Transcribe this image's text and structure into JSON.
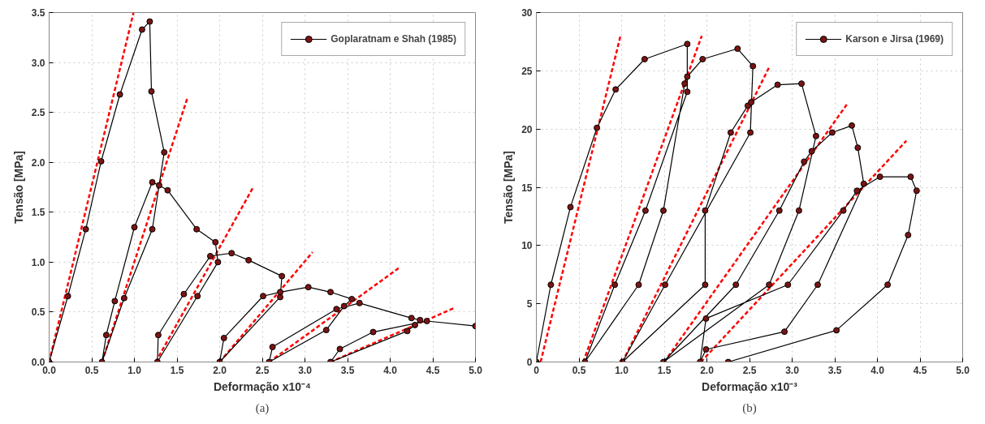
{
  "chart_data": [
    {
      "type": "line",
      "xlabel": "Deformação x10⁻⁴",
      "ylabel": "Tensão [MPa]",
      "annotations": [
        "(a)"
      ],
      "grid": true,
      "legend": "top right",
      "xlim": [
        0,
        5
      ],
      "ylim": [
        0,
        3.5
      ],
      "xticks": [
        {
          "value": 0,
          "label": "0.0"
        },
        0.5,
        {
          "value": 1,
          "label": "1.0"
        },
        1.5,
        {
          "value": 2,
          "label": "2.0"
        },
        2.5,
        {
          "value": 3,
          "label": "3.0"
        },
        3.5,
        {
          "value": 4,
          "label": "4.0"
        },
        4.5,
        {
          "value": 5,
          "label": "5.0"
        }
      ],
      "yticks": [
        {
          "value": 0,
          "label": "0.0"
        },
        0.5,
        {
          "value": 1,
          "label": "1.0"
        },
        1.5,
        {
          "value": 2,
          "label": "2.0"
        },
        2.5,
        {
          "value": 3,
          "label": "3.0"
        },
        3.5
      ],
      "series": [
        {
          "type": "line",
          "color": "#ff0000",
          "line_style": "dashed",
          "marker": "none",
          "x": [
            0.0,
            0.99
          ],
          "values": [
            0,
            3.5
          ]
        },
        {
          "type": "line",
          "color": "#ff0000",
          "line_style": "dashed",
          "marker": "none",
          "x": [
            0.62,
            1.62
          ],
          "values": [
            0,
            2.64
          ]
        },
        {
          "type": "line",
          "color": "#ff0000",
          "line_style": "dashed",
          "marker": "none",
          "x": [
            1.25,
            2.4
          ],
          "values": [
            0,
            1.76
          ]
        },
        {
          "type": "line",
          "color": "#ff0000",
          "line_style": "dashed",
          "marker": "none",
          "x": [
            2.0,
            3.09
          ],
          "values": [
            0,
            1.1
          ]
        },
        {
          "type": "line",
          "color": "#ff0000",
          "line_style": "dashed",
          "marker": "none",
          "x": [
            2.58,
            4.1
          ],
          "values": [
            0,
            0.94
          ]
        },
        {
          "type": "line",
          "color": "#ff0000",
          "line_style": "dashed",
          "marker": "none",
          "x": [
            3.3,
            4.75
          ],
          "values": [
            0,
            0.54
          ]
        },
        {
          "name": "Goplaratnam e Shah (1985)",
          "color": "#000000",
          "marker": "circle",
          "line_style": "solid",
          "x": [
            0,
            0.22,
            0.43,
            0.61,
            0.83,
            1.09,
            1.18,
            1.2,
            1.35,
            1.21,
            0.88,
            0.62,
            0.67,
            0.77,
            1.0,
            1.21,
            1.29,
            1.39,
            1.73,
            1.95,
            1.98,
            1.74,
            1.27,
            1.28,
            1.58,
            1.89,
            2.14,
            2.34,
            2.73,
            2.71,
            2.0,
            2.05,
            2.51,
            2.71,
            3.04,
            3.3,
            3.55,
            3.46,
            3.25,
            2.58,
            2.62,
            3.37,
            3.64,
            4.25,
            4.35,
            4.29,
            4.2,
            3.3,
            3.41,
            3.8,
            4.43,
            5.0
          ],
          "values": [
            0,
            0.66,
            1.33,
            2.01,
            2.68,
            3.33,
            3.41,
            2.71,
            2.1,
            1.33,
            0.64,
            0,
            0.27,
            0.61,
            1.35,
            1.8,
            1.77,
            1.72,
            1.33,
            1.2,
            1.0,
            0.66,
            0,
            0.27,
            0.68,
            1.06,
            1.09,
            1.02,
            0.86,
            0.65,
            0,
            0.24,
            0.66,
            0.7,
            0.75,
            0.7,
            0.63,
            0.56,
            0.32,
            0,
            0.15,
            0.53,
            0.59,
            0.44,
            0.42,
            0.37,
            0.31,
            0,
            0.13,
            0.3,
            0.41,
            0.36
          ]
        }
      ]
    },
    {
      "type": "line",
      "xlabel": "Deformação x10⁻³",
      "ylabel": "Tensão [MPa]",
      "annotations": [
        "(b)"
      ],
      "grid": true,
      "legend": "top right",
      "xlim": [
        0,
        5
      ],
      "ylim": [
        0,
        30
      ],
      "xticks": [
        0,
        0.5,
        {
          "value": 1,
          "label": "1.0"
        },
        1.5,
        {
          "value": 2,
          "label": "2.0"
        },
        2.5,
        {
          "value": 3,
          "label": "3.0"
        },
        3.5,
        {
          "value": 4,
          "label": "4.0"
        },
        4.5,
        {
          "value": 5,
          "label": "5.0"
        }
      ],
      "yticks": [
        0,
        5,
        10,
        15,
        20,
        25,
        30
      ],
      "series": [
        {
          "type": "line",
          "color": "#ff0000",
          "line_style": "dashed",
          "marker": "none",
          "x": [
            0.05,
            0.99
          ],
          "values": [
            0,
            28.1
          ]
        },
        {
          "type": "line",
          "color": "#ff0000",
          "line_style": "dashed",
          "marker": "none",
          "x": [
            0.55,
            1.94
          ],
          "values": [
            0,
            28.0
          ]
        },
        {
          "type": "line",
          "color": "#ff0000",
          "line_style": "dashed",
          "marker": "none",
          "x": [
            1.01,
            2.73
          ],
          "values": [
            0,
            25.3
          ]
        },
        {
          "type": "line",
          "color": "#ff0000",
          "line_style": "dashed",
          "marker": "none",
          "x": [
            1.5,
            3.65
          ],
          "values": [
            0,
            22.2
          ]
        },
        {
          "type": "line",
          "color": "#ff0000",
          "line_style": "dashed",
          "marker": "none",
          "x": [
            1.93,
            4.34
          ],
          "values": [
            0,
            19.0
          ]
        },
        {
          "name": "Karson e Jirsa (1969)",
          "color": "#000000",
          "marker": "circle",
          "line_style": "solid",
          "x": [
            0,
            0.17,
            0.4,
            0.71,
            0.93,
            1.27,
            1.77,
            1.77,
            1.28,
            0.92,
            0.57,
            1.2,
            1.49,
            1.74,
            1.77,
            1.95,
            2.36,
            2.54,
            2.51,
            1.51,
            1.01,
            1.98,
            1.98,
            2.28,
            2.48,
            2.52,
            2.83,
            3.11,
            3.28,
            3.08,
            2.73,
            1.49,
            2.34,
            2.85,
            3.14,
            3.23,
            3.47,
            3.7,
            3.77,
            3.84,
            3.3,
            2.91,
            1.99,
            1.92,
            1.99,
            2.95,
            3.6,
            3.76,
            4.03,
            4.39,
            4.46,
            4.36,
            4.12,
            3.52,
            2.25
          ],
          "values": [
            0,
            6.63,
            13.3,
            20.1,
            23.4,
            26.0,
            27.3,
            23.2,
            13.0,
            6.63,
            0,
            6.63,
            13.0,
            23.9,
            24.5,
            26.0,
            26.9,
            25.4,
            19.7,
            6.63,
            0,
            6.63,
            13.0,
            19.7,
            22.0,
            22.3,
            23.8,
            23.9,
            19.4,
            13.0,
            6.63,
            0,
            6.63,
            13.0,
            17.2,
            18.1,
            19.7,
            20.3,
            18.4,
            15.3,
            6.63,
            2.6,
            1.08,
            0,
            3.73,
            6.63,
            13.0,
            14.7,
            15.9,
            15.9,
            14.7,
            10.9,
            6.63,
            2.72,
            0
          ]
        }
      ]
    }
  ]
}
